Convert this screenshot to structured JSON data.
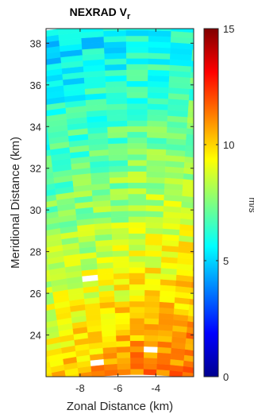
{
  "chart_data": {
    "type": "heatmap",
    "title": "NEXRAD V",
    "title_subscript": "r",
    "xlabel": "Zonal Distance (km)",
    "ylabel": "Meridional Distance (km)",
    "xlim": [
      -9.8,
      -2.0
    ],
    "ylim": [
      22.0,
      38.7
    ],
    "xticks": [
      "-8",
      "-6",
      "-4"
    ],
    "yticks": [
      "24",
      "26",
      "28",
      "30",
      "32",
      "34",
      "36",
      "38"
    ],
    "colorbar": {
      "label": "m/s",
      "range": [
        0,
        15
      ],
      "ticks": [
        "0",
        "5",
        "10",
        "15"
      ],
      "colormap": "jet"
    },
    "sector": {
      "radar_origin": [
        -5.0,
        0.0
      ],
      "azimuth_edges_deg": [
        -15.0,
        8.0
      ],
      "range_edges_km": [
        22.1,
        38.9
      ]
    },
    "field_pattern": {
      "north_value": 5.2,
      "south_value": 11.0,
      "east_bias": 0.9,
      "noise": 1.0,
      "blank_cells": 8
    },
    "grid": false,
    "legend": "none"
  },
  "colors": {
    "axis": "#262626",
    "background": "#ffffff"
  }
}
